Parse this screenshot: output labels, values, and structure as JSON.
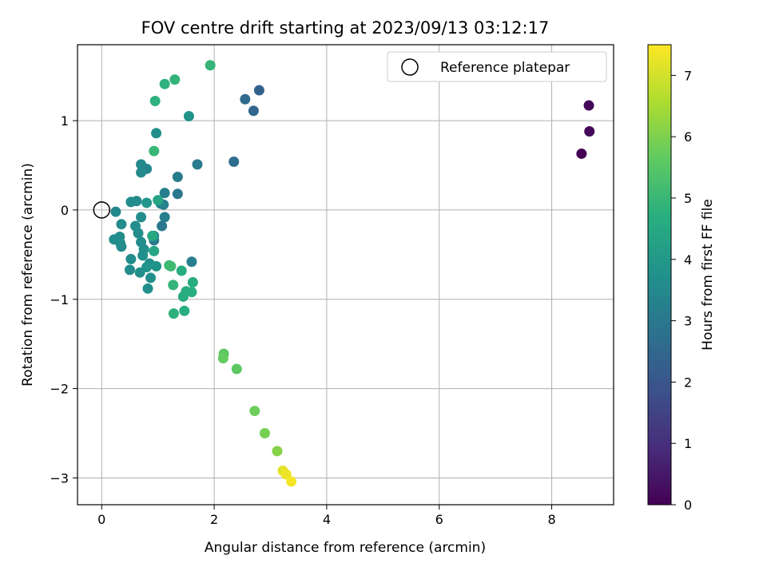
{
  "chart_data": {
    "type": "scatter",
    "title": "FOV centre drift starting at 2023/09/13 03:12:17",
    "xlabel": "Angular distance from reference (arcmin)",
    "ylabel": "Rotation from reference (arcmin)",
    "xlim": [
      -0.43,
      9.1
    ],
    "ylim": [
      -3.3,
      1.85
    ],
    "xticks": [
      0,
      2,
      4,
      6,
      8
    ],
    "yticks": [
      -3,
      -2,
      -1,
      0,
      1
    ],
    "xtick_labels": [
      "0",
      "2",
      "4",
      "6",
      "8"
    ],
    "ytick_labels": [
      "−3",
      "−2",
      "−1",
      "0",
      "1"
    ],
    "grid": true,
    "legend": {
      "placement": "top-right",
      "entries": [
        "Reference platepar"
      ]
    },
    "reference_point": {
      "name": "Reference platepar",
      "x": 0,
      "y": 0
    },
    "colorbar": {
      "label": "Hours from first FF file",
      "colormap": "viridis",
      "range": [
        0,
        7.5
      ],
      "ticks": [
        0,
        1,
        2,
        3,
        4,
        5,
        6,
        7
      ],
      "tick_labels": [
        "0",
        "1",
        "2",
        "3",
        "4",
        "5",
        "6",
        "7"
      ]
    },
    "points": [
      {
        "x": 8.53,
        "y": 0.63,
        "c": 0.0
      },
      {
        "x": 8.67,
        "y": 0.88,
        "c": 0.1
      },
      {
        "x": 8.66,
        "y": 1.17,
        "c": 0.15
      },
      {
        "x": 2.8,
        "y": 1.34,
        "c": 2.3
      },
      {
        "x": 2.7,
        "y": 1.11,
        "c": 2.5
      },
      {
        "x": 2.55,
        "y": 1.24,
        "c": 2.6
      },
      {
        "x": 2.35,
        "y": 0.54,
        "c": 2.7
      },
      {
        "x": 1.7,
        "y": 0.51,
        "c": 3.1
      },
      {
        "x": 1.35,
        "y": 0.37,
        "c": 3.15
      },
      {
        "x": 1.35,
        "y": 0.18,
        "c": 3.0
      },
      {
        "x": 1.12,
        "y": 0.19,
        "c": 3.2
      },
      {
        "x": 1.1,
        "y": 0.06,
        "c": 3.25
      },
      {
        "x": 1.05,
        "y": 0.07,
        "c": 3.3
      },
      {
        "x": 1.12,
        "y": -0.08,
        "c": 3.2
      },
      {
        "x": 1.07,
        "y": -0.18,
        "c": 3.0
      },
      {
        "x": 0.93,
        "y": -0.34,
        "c": 3.1
      },
      {
        "x": 1.6,
        "y": -0.58,
        "c": 3.2
      },
      {
        "x": 0.8,
        "y": 0.46,
        "c": 3.4
      },
      {
        "x": 0.7,
        "y": 0.51,
        "c": 3.5
      },
      {
        "x": 0.7,
        "y": 0.42,
        "c": 3.5
      },
      {
        "x": 0.62,
        "y": 0.1,
        "c": 3.5
      },
      {
        "x": 0.52,
        "y": 0.09,
        "c": 3.6
      },
      {
        "x": 0.8,
        "y": 0.08,
        "c": 3.9
      },
      {
        "x": 0.97,
        "y": 0.86,
        "c": 3.7
      },
      {
        "x": 1.55,
        "y": 1.05,
        "c": 3.8
      },
      {
        "x": 0.25,
        "y": -0.02,
        "c": 3.5
      },
      {
        "x": 0.7,
        "y": -0.08,
        "c": 3.6
      },
      {
        "x": 0.6,
        "y": -0.18,
        "c": 3.7
      },
      {
        "x": 0.35,
        "y": -0.16,
        "c": 3.6
      },
      {
        "x": 0.65,
        "y": -0.26,
        "c": 3.6
      },
      {
        "x": 0.22,
        "y": -0.33,
        "c": 3.7
      },
      {
        "x": 0.32,
        "y": -0.3,
        "c": 3.6
      },
      {
        "x": 0.33,
        "y": -0.37,
        "c": 3.6
      },
      {
        "x": 0.35,
        "y": -0.41,
        "c": 3.6
      },
      {
        "x": 0.7,
        "y": -0.36,
        "c": 3.6
      },
      {
        "x": 0.75,
        "y": -0.44,
        "c": 3.7
      },
      {
        "x": 0.73,
        "y": -0.51,
        "c": 3.7
      },
      {
        "x": 0.93,
        "y": -0.29,
        "c": 3.7
      },
      {
        "x": 0.52,
        "y": -0.55,
        "c": 3.6
      },
      {
        "x": 0.85,
        "y": -0.6,
        "c": 3.7
      },
      {
        "x": 0.8,
        "y": -0.64,
        "c": 3.8
      },
      {
        "x": 0.97,
        "y": -0.63,
        "c": 3.8
      },
      {
        "x": 0.5,
        "y": -0.67,
        "c": 3.6
      },
      {
        "x": 0.68,
        "y": -0.7,
        "c": 3.7
      },
      {
        "x": 0.87,
        "y": -0.76,
        "c": 3.7
      },
      {
        "x": 0.82,
        "y": -0.88,
        "c": 3.7
      },
      {
        "x": 0.93,
        "y": -0.46,
        "c": 4.4
      },
      {
        "x": 0.9,
        "y": -0.29,
        "c": 4.5
      },
      {
        "x": 1.0,
        "y": 0.11,
        "c": 4.4
      },
      {
        "x": 1.42,
        "y": -0.68,
        "c": 4.6
      },
      {
        "x": 1.2,
        "y": -0.62,
        "c": 5.0
      },
      {
        "x": 1.23,
        "y": -0.63,
        "c": 5.1
      },
      {
        "x": 1.27,
        "y": -0.84,
        "c": 4.9
      },
      {
        "x": 1.5,
        "y": -0.91,
        "c": 4.7
      },
      {
        "x": 1.62,
        "y": -0.81,
        "c": 4.6
      },
      {
        "x": 1.6,
        "y": -0.92,
        "c": 4.7
      },
      {
        "x": 1.45,
        "y": -0.97,
        "c": 4.6
      },
      {
        "x": 1.47,
        "y": -1.13,
        "c": 4.7
      },
      {
        "x": 1.28,
        "y": -1.16,
        "c": 4.8
      },
      {
        "x": 0.95,
        "y": 1.22,
        "c": 4.8
      },
      {
        "x": 1.12,
        "y": 1.41,
        "c": 4.8
      },
      {
        "x": 1.3,
        "y": 1.46,
        "c": 4.9
      },
      {
        "x": 1.93,
        "y": 1.62,
        "c": 4.9
      },
      {
        "x": 0.93,
        "y": 0.66,
        "c": 5.0
      },
      {
        "x": 2.17,
        "y": -1.61,
        "c": 5.6
      },
      {
        "x": 2.16,
        "y": -1.66,
        "c": 5.7
      },
      {
        "x": 2.4,
        "y": -1.78,
        "c": 5.6
      },
      {
        "x": 2.72,
        "y": -2.25,
        "c": 5.8
      },
      {
        "x": 2.9,
        "y": -2.5,
        "c": 5.9
      },
      {
        "x": 3.12,
        "y": -2.7,
        "c": 6.1
      },
      {
        "x": 3.22,
        "y": -2.92,
        "c": 7.2
      },
      {
        "x": 3.28,
        "y": -2.96,
        "c": 7.3
      },
      {
        "x": 3.37,
        "y": -3.04,
        "c": 7.4
      }
    ]
  }
}
